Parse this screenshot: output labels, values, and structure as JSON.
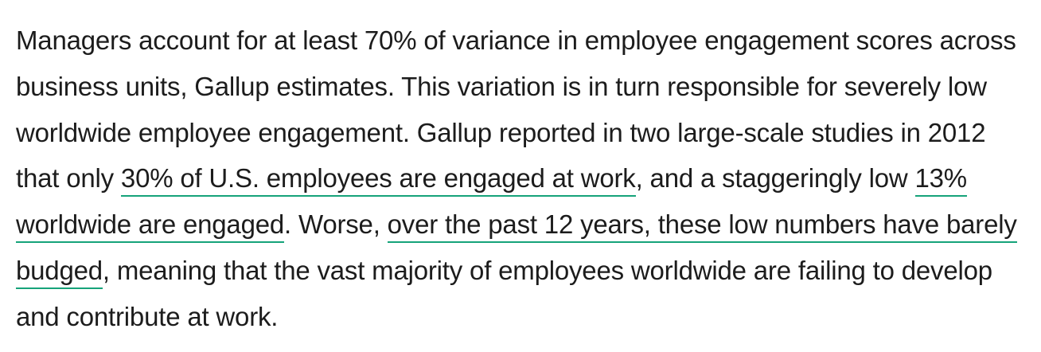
{
  "paragraph": {
    "segments": [
      {
        "type": "text",
        "text": "Managers account for at least 70% of variance in employee engagement scores across business units, Gallup estimates. This variation is in turn responsible for severely low worldwide employee engagement. Gallup reported in two large-scale studies in 2012 that only "
      },
      {
        "type": "link",
        "text": "30% of U.S. employees are engaged at work"
      },
      {
        "type": "text",
        "text": ", and a staggeringly low "
      },
      {
        "type": "link",
        "text": "13% worldwide are engaged"
      },
      {
        "type": "text",
        "text": ". Worse, "
      },
      {
        "type": "link",
        "text": "over the past 12 years, these low numbers have barely budged"
      },
      {
        "type": "text",
        "text": ", meaning that the vast majority of employees worldwide are failing to develop and contribute at work."
      }
    ]
  },
  "colors": {
    "text": "#1c1c1c",
    "link_underline": "#16a37a",
    "background": "#ffffff"
  }
}
